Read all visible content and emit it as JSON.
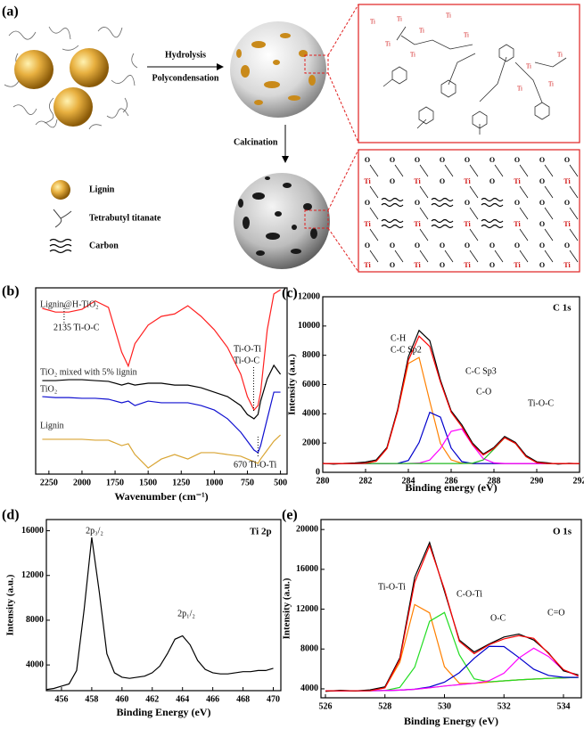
{
  "panel_a": {
    "label": "(a)",
    "hydrolysis": "Hydrolysis",
    "polycondensation": "Polycondensation",
    "calcination": "Calcination",
    "legend": [
      "Lignin",
      "Tetrabutyl titanate",
      "Carbon"
    ],
    "ti": "Ti",
    "o": "O"
  },
  "chart_data": [
    {
      "type": "line",
      "panel_label": "(b)",
      "xlabel": "Wavenumber (cm⁻¹)",
      "x": [
        2300,
        2200,
        2100,
        2000,
        1900,
        1800,
        1700,
        1650,
        1600,
        1500,
        1400,
        1300,
        1200,
        1100,
        1000,
        900,
        800,
        750,
        700,
        670,
        650,
        600,
        550,
        500
      ],
      "xlim": [
        2350,
        450
      ],
      "xticks": [
        2250,
        2000,
        1750,
        1500,
        1250,
        1000,
        750,
        500
      ],
      "ylim": [
        0,
        100
      ],
      "series": [
        {
          "name": "Lignin@H-TiO₂",
          "color": "#ff2020",
          "values": [
            89,
            87,
            87,
            88.5,
            93,
            89.5,
            65.5,
            58,
            70,
            80,
            84.7,
            86,
            90.4,
            84.7,
            77.5,
            68,
            53.6,
            41.6,
            34.4,
            36.8,
            44,
            77.5,
            96.7,
            99
          ]
        },
        {
          "name": "TiO₂ mixed with 5% lignin",
          "color": "#000000",
          "values": [
            50.2,
            50.2,
            50.7,
            50.7,
            50.2,
            49.8,
            47.8,
            48.8,
            47.8,
            48.8,
            48.8,
            47.8,
            47.8,
            46.4,
            44,
            41.6,
            36.8,
            32,
            29.7,
            32,
            39.2,
            51.2,
            58.4,
            53.6
          ]
        },
        {
          "name": "TiO₂",
          "color": "#1010d0",
          "values": [
            41.6,
            41.1,
            41.1,
            40.7,
            40.7,
            40.2,
            38.3,
            39.2,
            36.8,
            39.2,
            38.3,
            38.3,
            38.3,
            36.8,
            34.4,
            29.7,
            22.5,
            17.7,
            12.9,
            11.5,
            15.3,
            29.7,
            44,
            44
          ]
        },
        {
          "name": "Lignin",
          "color": "#d9a534",
          "values": [
            18.7,
            18.7,
            18.7,
            18.7,
            18.2,
            18.2,
            15.3,
            16.3,
            10.5,
            3.3,
            8.1,
            10.5,
            8.1,
            11.5,
            11.5,
            10.5,
            9.6,
            8.1,
            6.7,
            5.7,
            8.1,
            12.9,
            17.7,
            21
          ]
        }
      ],
      "annotations": [
        "2135 Ti-O-C",
        "Ti-O-Ti",
        "Ti-O-C",
        "670 Ti-O-Ti"
      ]
    },
    {
      "type": "line",
      "panel_label": "(c)",
      "xlabel": "Binding energy (eV)",
      "ylabel": "Intensity (a.u.)",
      "x": [
        280,
        280.5,
        281,
        281.5,
        282,
        282.5,
        283,
        283.5,
        284,
        284.5,
        285,
        285.5,
        286,
        286.5,
        287,
        287.5,
        288,
        288.5,
        289,
        289.5,
        290,
        290.5,
        291,
        291.5,
        292
      ],
      "xlim": [
        280,
        292
      ],
      "xticks": [
        280,
        282,
        284,
        286,
        288,
        290,
        292
      ],
      "ylim": [
        0,
        12000
      ],
      "yticks": [
        0,
        2000,
        4000,
        6000,
        8000,
        10000,
        12000
      ],
      "series": [
        {
          "color": "#ff8000",
          "values": [
            600,
            600,
            600,
            605,
            620,
            767,
            1626,
            4172,
            7440,
            7850,
            4856,
            1968,
            851,
            623,
            600,
            600,
            600,
            600,
            600,
            600,
            600,
            600,
            600,
            600,
            600
          ]
        },
        {
          "color": "#0000cc",
          "values": [
            600,
            600,
            600,
            600,
            600,
            600,
            600,
            610,
            810,
            2030,
            4100,
            3770,
            1660,
            730,
            600,
            600,
            600,
            600,
            600,
            600,
            600,
            600,
            600,
            600,
            600
          ]
        },
        {
          "color": "#ff00ff",
          "values": [
            600,
            600,
            600,
            600,
            600,
            600,
            600,
            600,
            600,
            630,
            840,
            1630,
            2800,
            2965,
            1870,
            940,
            645,
            600,
            600,
            600,
            600,
            600,
            600,
            600,
            600
          ]
        },
        {
          "color": "#22bb22",
          "values": [
            600,
            600,
            600,
            600,
            600,
            600,
            600,
            600,
            600,
            600,
            600,
            600,
            600,
            600,
            626,
            845,
            1590,
            2365,
            1985,
            1070,
            670,
            600,
            600,
            600,
            600
          ]
        },
        {
          "color": "#000000",
          "values": [
            620,
            560,
            610,
            640,
            700,
            850,
            1700,
            4300,
            7900,
            9700,
            9000,
            6300,
            4200,
            3250,
            2000,
            1250,
            1700,
            2450,
            2050,
            1150,
            720,
            650,
            560,
            620,
            590
          ]
        },
        {
          "color": "#ff0000",
          "values": [
            600,
            600,
            600,
            605,
            620,
            767,
            1626,
            4182,
            7650,
            9310,
            8596,
            6168,
            4111,
            3118,
            1896,
            1185,
            1635,
            2365,
            1985,
            1070,
            670,
            600,
            600,
            600,
            600
          ]
        }
      ],
      "annotations": [
        "C 1s",
        "C-H",
        "C-C Sp2",
        "C-C Sp3",
        "C-O",
        "Ti-O-C"
      ]
    },
    {
      "type": "line",
      "panel_label": "(d)",
      "xlabel": "Binding Energy (eV)",
      "ylabel": "Intensity (a.u.)",
      "x": [
        455,
        455.5,
        456,
        456.5,
        457,
        457.5,
        458,
        458.5,
        459,
        459.5,
        460,
        460.5,
        461,
        461.5,
        462,
        462.5,
        463,
        463.5,
        464,
        464.5,
        465,
        465.5,
        466,
        466.5,
        467,
        467.5,
        468,
        468.5,
        469,
        469.5,
        470
      ],
      "xlim": [
        455,
        470.5
      ],
      "xticks": [
        456,
        458,
        460,
        462,
        464,
        466,
        468,
        470
      ],
      "ylim": [
        1700,
        17000
      ],
      "yticks": [
        4000,
        8000,
        12000,
        16000
      ],
      "series": [
        {
          "color": "#000000",
          "values": [
            1800,
            1900,
            2100,
            2300,
            3500,
            9000,
            15400,
            10500,
            5000,
            3300,
            2900,
            2800,
            2900,
            3000,
            3300,
            3900,
            5000,
            6300,
            6600,
            5800,
            4400,
            3600,
            3300,
            3200,
            3200,
            3300,
            3400,
            3400,
            3500,
            3500,
            3700
          ]
        }
      ],
      "annotations": [
        "Ti 2p",
        "2p₃/₂",
        "2p₁/₂"
      ]
    },
    {
      "type": "line",
      "panel_label": "(e)",
      "xlabel": "Binding Energy (eV)",
      "ylabel": "Intensity (a.u.)",
      "x": [
        526,
        526.5,
        527,
        527.5,
        528,
        528.5,
        529,
        529.5,
        530,
        530.5,
        531,
        531.5,
        532,
        532.5,
        533,
        533.5,
        534,
        534.5
      ],
      "xlim": [
        525.85,
        534.6
      ],
      "xticks": [
        526,
        528,
        530,
        532,
        534
      ],
      "ylim": [
        3100,
        21000
      ],
      "yticks": [
        4000,
        8000,
        12000,
        16000,
        20000
      ],
      "series": [
        {
          "color": "#999999",
          "values": [
            3800,
            3800,
            3800,
            3810,
            3830,
            3870,
            3950,
            4100,
            4280,
            4420,
            4550,
            4680,
            4800,
            4900,
            4980,
            5050,
            5100,
            5150
          ]
        },
        {
          "color": "#ff8000",
          "values": [
            3800,
            3800,
            3800,
            3810,
            4095,
            6670,
            12465,
            11630,
            6215,
            4565,
            4550,
            4680,
            4800,
            4900,
            4980,
            5050,
            5100,
            5150
          ]
        },
        {
          "color": "#22dd22",
          "values": [
            3800,
            3800,
            3800,
            3810,
            3830,
            4140,
            6175,
            10780,
            11665,
            7420,
            5000,
            4705,
            4800,
            4900,
            4980,
            5050,
            5100,
            5150
          ]
        },
        {
          "color": "#0000cc",
          "values": [
            3800,
            3800,
            3800,
            3810,
            3830,
            3870,
            3962,
            4185,
            4670,
            5620,
            7070,
            8270,
            8245,
            7145,
            5970,
            5345,
            5160,
            5150
          ]
        },
        {
          "color": "#ff00ff",
          "values": [
            3800,
            3800,
            3800,
            3810,
            3830,
            3870,
            3950,
            4100,
            4280,
            4420,
            4562,
            4815,
            5570,
            7090,
            8080,
            7240,
            5870,
            5285
          ]
        },
        {
          "color": "#000000",
          "values": [
            3750,
            3850,
            3780,
            3900,
            4200,
            7100,
            15200,
            18700,
            13800,
            8900,
            7700,
            8500,
            9200,
            9500,
            8900,
            7600,
            5800,
            5400
          ]
        },
        {
          "color": "#ff0000",
          "values": [
            3800,
            3800,
            3800,
            3810,
            4095,
            6940,
            14702,
            18395,
            13990,
            8765,
            7532,
            8430,
            9015,
            9335,
            9070,
            7535,
            5930,
            5285
          ]
        }
      ],
      "annotations": [
        "O 1s",
        "Ti-O-Ti",
        "C-O-Ti",
        "O-C",
        "C=O"
      ]
    }
  ]
}
